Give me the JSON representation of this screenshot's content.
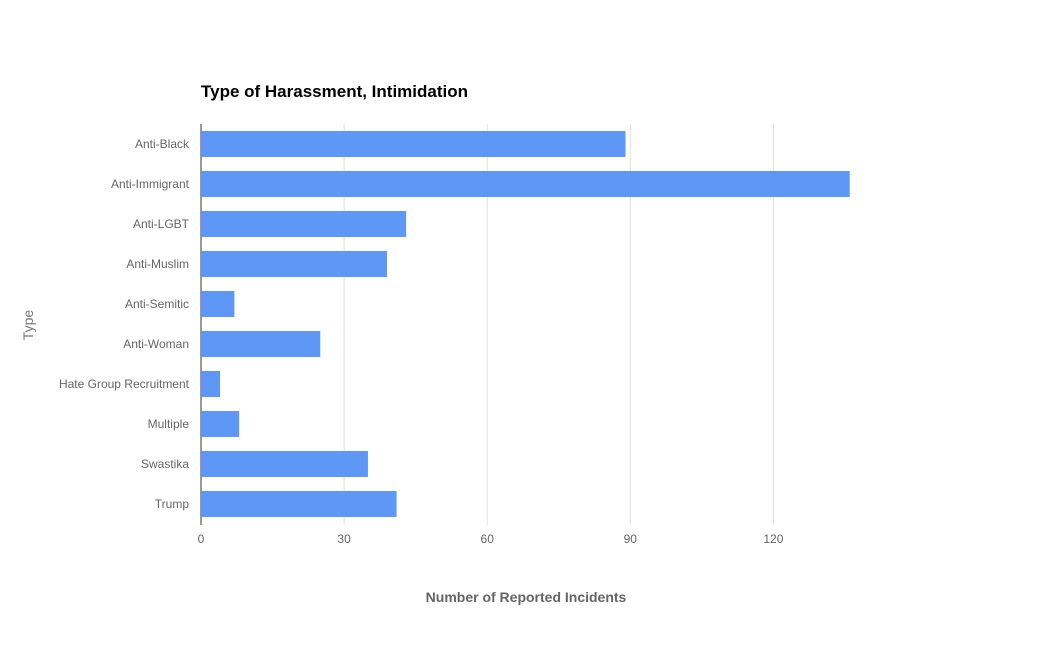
{
  "chart_data": {
    "type": "bar",
    "orientation": "horizontal",
    "title": "Type of Harassment, Intimidation",
    "xlabel": "Number of Reported Incidents",
    "ylabel": "Type",
    "categories": [
      "Anti-Black",
      "Anti-Immigrant",
      "Anti-LGBT",
      "Anti-Muslim",
      "Anti-Semitic",
      "Anti-Woman",
      "Hate Group Recruitment",
      "Multiple",
      "Swastika",
      "Trump"
    ],
    "values": [
      89,
      136,
      43,
      39,
      7,
      25,
      4,
      8,
      35,
      41
    ],
    "xlim": [
      0,
      150
    ],
    "xticks": [
      "0",
      "30",
      "60",
      "90",
      "120"
    ],
    "xtick_values": [
      0,
      30,
      60,
      90,
      120
    ],
    "grid": true,
    "legend": "none",
    "bar_color": "#5e97f6"
  }
}
